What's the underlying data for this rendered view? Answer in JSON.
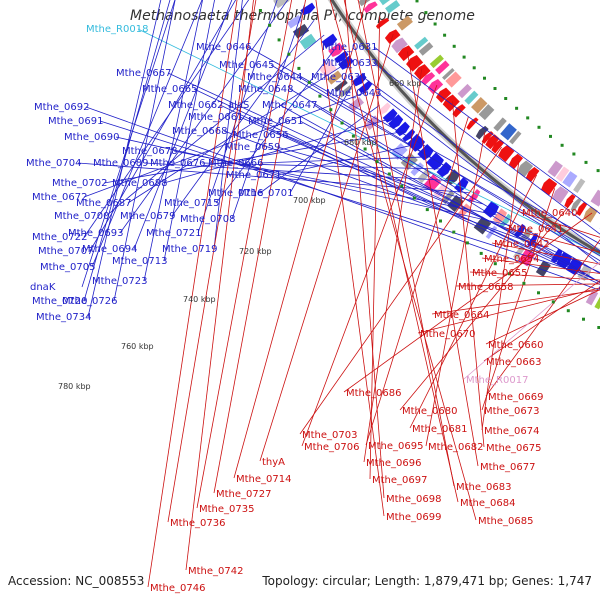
{
  "title": "Methanosaeta thermophila PT, complete genome",
  "accession": "Accession: NC_008553",
  "summary": "Topology: circular; Length: 1,879,471 bp; Genes: 1,747",
  "colors": {
    "forward_label": "#1f1fc8",
    "reverse_label": "#cc1111",
    "rna_label": "#33bbdd",
    "pseudo_label": "#dd99cc",
    "forward_arrow": "#1a1ae6",
    "reverse_arrow": "#ee1111",
    "backbone": "#888888",
    "tick_dot": "#228822"
  },
  "ticks": [
    {
      "label": "660 kbp"
    },
    {
      "label": "680 kbp"
    },
    {
      "label": "700 kbp"
    },
    {
      "label": "720 kbp"
    },
    {
      "label": "740 kbp"
    },
    {
      "label": "760 kbp"
    },
    {
      "label": "780 kbp"
    }
  ],
  "forward_labels": [
    {
      "label": "Mthe_R0018",
      "kind": "rna"
    },
    {
      "label": "Mthe_0646"
    },
    {
      "label": "Mthe_0631"
    },
    {
      "label": "Mthe_0667"
    },
    {
      "label": "Mthe_0645"
    },
    {
      "label": "Mthe_0633"
    },
    {
      "label": "Mthe_0644"
    },
    {
      "label": "Mthe_0634"
    },
    {
      "label": "Mthe_0665"
    },
    {
      "label": "Mthe_0648"
    },
    {
      "label": "Mthe_0643"
    },
    {
      "label": "Mthe_0692"
    },
    {
      "label": "Mthe_0662"
    },
    {
      "label": "alaS"
    },
    {
      "label": "Mthe_0647"
    },
    {
      "label": "Mthe_0691"
    },
    {
      "label": "Mthe_0661"
    },
    {
      "label": "Mthe_0651"
    },
    {
      "label": "Mthe_0668"
    },
    {
      "label": "Mthe_0656"
    },
    {
      "label": "Mthe_0690"
    },
    {
      "label": "Mthe_0678"
    },
    {
      "label": "Mthe_0659"
    },
    {
      "label": "Mthe_0704"
    },
    {
      "label": "Mthe_0689"
    },
    {
      "label": "Mthe_0676"
    },
    {
      "label": "Mthe_0666"
    },
    {
      "label": "Mthe_0671"
    },
    {
      "label": "Mthe_0702"
    },
    {
      "label": "Mthe_0688"
    },
    {
      "label": "Mthe_0716"
    },
    {
      "label": "Mthe_0672"
    },
    {
      "label": "Mthe_0701"
    },
    {
      "label": "Mthe_0687"
    },
    {
      "label": "Mthe_0715"
    },
    {
      "label": "Mthe_0700"
    },
    {
      "label": "Mthe_0679"
    },
    {
      "label": "Mthe_0708"
    },
    {
      "label": "Mthe_0693"
    },
    {
      "label": "Mthe_0721"
    },
    {
      "label": "Mthe_0722"
    },
    {
      "label": "Mthe_0707"
    },
    {
      "label": "Mthe_0694"
    },
    {
      "label": "Mthe_0719"
    },
    {
      "label": "Mthe_0705"
    },
    {
      "label": "Mthe_0713"
    },
    {
      "label": "Mthe_0723"
    },
    {
      "label": "dnaK"
    },
    {
      "label": "Mthe_0720"
    },
    {
      "label": "Mthe_0726"
    },
    {
      "label": "Mthe_0734"
    }
  ],
  "reverse_labels": [
    {
      "label": "Mthe_0640"
    },
    {
      "label": "Mthe_0641"
    },
    {
      "label": "Mthe_0642"
    },
    {
      "label": "Mthe_0654"
    },
    {
      "label": "Mthe_0655"
    },
    {
      "label": "Mthe_0658"
    },
    {
      "label": "Mthe_0664"
    },
    {
      "label": "Mthe_0670"
    },
    {
      "label": "Mthe_0660"
    },
    {
      "label": "Mthe_0663"
    },
    {
      "label": "Mthe_R0017",
      "kind": "pseudo"
    },
    {
      "label": "Mthe_0669"
    },
    {
      "label": "Mthe_0686"
    },
    {
      "label": "Mthe_0680"
    },
    {
      "label": "Mthe_0673"
    },
    {
      "label": "Mthe_0681"
    },
    {
      "label": "Mthe_0674"
    },
    {
      "label": "Mthe_0703"
    },
    {
      "label": "Mthe_0682"
    },
    {
      "label": "Mthe_0695"
    },
    {
      "label": "Mthe_0675"
    },
    {
      "label": "Mthe_0706"
    },
    {
      "label": "Mthe_0696"
    },
    {
      "label": "Mthe_0677"
    },
    {
      "label": "thyA"
    },
    {
      "label": "Mthe_0697"
    },
    {
      "label": "Mthe_0714"
    },
    {
      "label": "Mthe_0683"
    },
    {
      "label": "Mthe_0698"
    },
    {
      "label": "Mthe_0684"
    },
    {
      "label": "Mthe_0727"
    },
    {
      "label": "Mthe_0735"
    },
    {
      "label": "Mthe_0699"
    },
    {
      "label": "Mthe_0685"
    },
    {
      "label": "Mthe_0736"
    },
    {
      "label": "Mthe_0742"
    },
    {
      "label": "Mthe_0746"
    }
  ]
}
